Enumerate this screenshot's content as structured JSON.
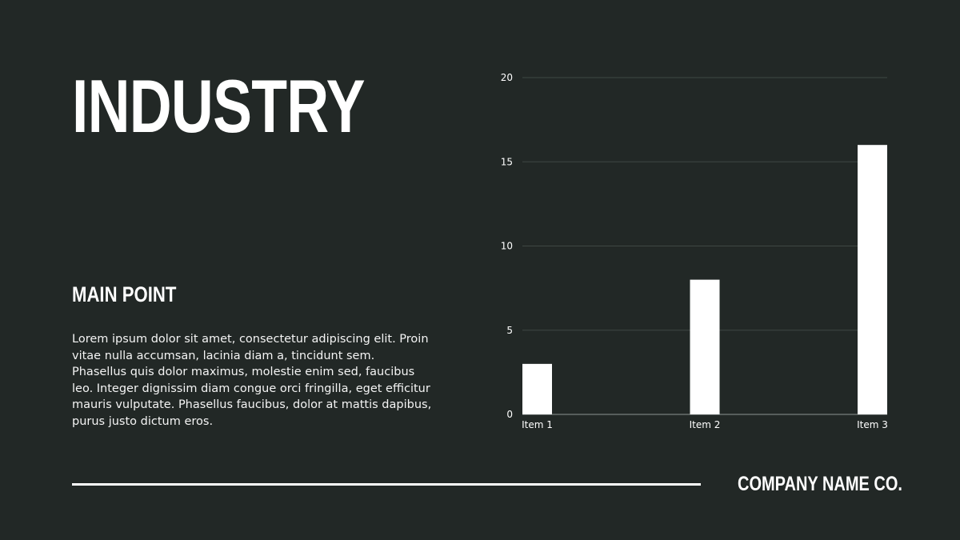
{
  "slide": {
    "title": "INDUSTRY",
    "subhead": "MAIN POINT",
    "body": "Lorem ipsum dolor sit amet, consectetur adipiscing elit. Proin vitae nulla accumsan, lacinia diam a, tincidunt sem. Phasellus quis dolor maximus, molestie enim sed, faucibus leo. Integer dignissim diam congue orci fringilla, eget efficitur mauris vulputate. Phasellus faucibus, dolor at mattis dapibus, purus justo dictum eros.",
    "company": "COMPANY NAME CO."
  },
  "colors": {
    "background": "#222826",
    "bar": "#ffffff",
    "grid": "#3e4744",
    "text": "#ffffff"
  },
  "chart_data": {
    "type": "bar",
    "categories": [
      "Item 1",
      "Item 2",
      "Item 3"
    ],
    "values": [
      3,
      8,
      16
    ],
    "yticks": [
      0,
      5,
      10,
      15,
      20
    ],
    "ylim": [
      0,
      20
    ],
    "grid": true,
    "legend": "none"
  }
}
